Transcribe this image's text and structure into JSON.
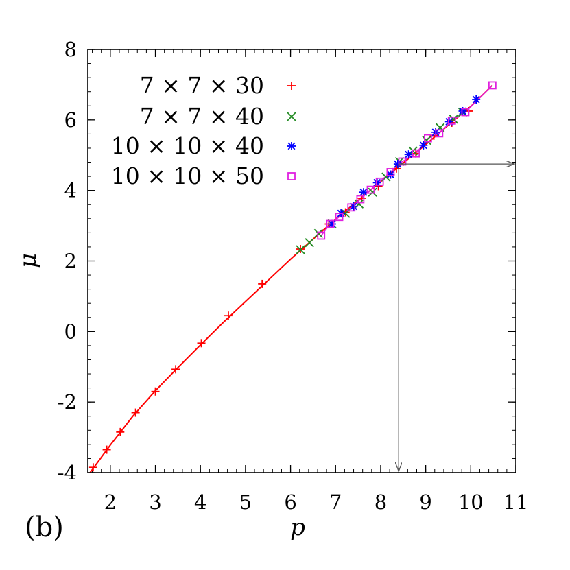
{
  "chart_data": {
    "type": "scatter",
    "panel_label": "(b)",
    "xlabel": "p",
    "ylabel": "μ",
    "xlim": [
      1.5,
      11
    ],
    "ylim": [
      -4,
      8
    ],
    "x_ticks": [
      2,
      3,
      4,
      5,
      6,
      7,
      8,
      9,
      10,
      11
    ],
    "x_tick_labels": [
      "2",
      "3",
      "4",
      "5",
      "6",
      "7",
      "8",
      "9",
      "10",
      "11"
    ],
    "y_ticks": [
      -4,
      -2,
      0,
      2,
      4,
      6,
      8
    ],
    "y_tick_labels": [
      "-4",
      "-2",
      "0",
      "2",
      "4",
      "6",
      "8"
    ],
    "legend_position": "top-left",
    "series": [
      {
        "name": "7 × 7 × 30",
        "color": "#ff0000",
        "marker": "plus",
        "points": [
          [
            1.62,
            -3.85
          ],
          [
            1.92,
            -3.35
          ],
          [
            2.22,
            -2.85
          ],
          [
            2.56,
            -2.3
          ],
          [
            3.0,
            -1.7
          ],
          [
            3.45,
            -1.07
          ],
          [
            4.02,
            -0.33
          ],
          [
            4.62,
            0.45
          ],
          [
            5.37,
            1.35
          ],
          [
            6.22,
            2.34
          ],
          [
            6.85,
            3.05
          ],
          [
            7.22,
            3.38
          ],
          [
            7.58,
            3.78
          ],
          [
            7.95,
            4.12
          ],
          [
            8.35,
            4.62
          ],
          [
            8.78,
            5.05
          ],
          [
            9.18,
            5.55
          ],
          [
            9.58,
            5.92
          ],
          [
            9.95,
            6.25
          ]
        ]
      },
      {
        "name": "7 × 7 × 40",
        "color": "#228b22",
        "marker": "cross",
        "points": [
          [
            6.22,
            2.32
          ],
          [
            6.42,
            2.52
          ],
          [
            6.62,
            2.78
          ],
          [
            6.92,
            3.05
          ],
          [
            7.22,
            3.35
          ],
          [
            7.52,
            3.62
          ],
          [
            7.82,
            3.95
          ],
          [
            8.12,
            4.38
          ],
          [
            8.42,
            4.82
          ],
          [
            8.72,
            5.12
          ],
          [
            9.02,
            5.42
          ],
          [
            9.32,
            5.78
          ],
          [
            9.62,
            6.02
          ],
          [
            9.82,
            6.22
          ]
        ]
      },
      {
        "name": "10 × 10 × 40",
        "color": "#0000ff",
        "marker": "star",
        "points": [
          [
            6.92,
            3.05
          ],
          [
            7.12,
            3.35
          ],
          [
            7.4,
            3.55
          ],
          [
            7.62,
            3.95
          ],
          [
            7.92,
            4.22
          ],
          [
            8.22,
            4.45
          ],
          [
            8.38,
            4.75
          ],
          [
            8.62,
            5.02
          ],
          [
            8.95,
            5.28
          ],
          [
            9.22,
            5.65
          ],
          [
            9.52,
            5.95
          ],
          [
            9.82,
            6.25
          ],
          [
            10.12,
            6.58
          ]
        ]
      },
      {
        "name": "10 × 10 × 50",
        "color": "#e020e0",
        "marker": "square",
        "points": [
          [
            6.68,
            2.72
          ],
          [
            6.88,
            3.05
          ],
          [
            7.08,
            3.25
          ],
          [
            7.35,
            3.52
          ],
          [
            7.55,
            3.75
          ],
          [
            7.78,
            4.02
          ],
          [
            7.98,
            4.25
          ],
          [
            8.22,
            4.52
          ],
          [
            8.48,
            4.82
          ],
          [
            8.78,
            5.05
          ],
          [
            9.05,
            5.48
          ],
          [
            9.3,
            5.62
          ],
          [
            9.58,
            5.98
          ],
          [
            9.88,
            6.22
          ],
          [
            10.48,
            6.98
          ]
        ]
      }
    ],
    "fit_curve": {
      "color": "#ff0000",
      "points": [
        [
          1.55,
          -4.0
        ],
        [
          2.0,
          -3.22
        ],
        [
          2.5,
          -2.4
        ],
        [
          3.0,
          -1.68
        ],
        [
          3.5,
          -1.02
        ],
        [
          4.0,
          -0.38
        ],
        [
          4.5,
          0.25
        ],
        [
          5.0,
          0.85
        ],
        [
          5.5,
          1.45
        ],
        [
          6.0,
          2.05
        ],
        [
          6.5,
          2.62
        ],
        [
          7.0,
          3.18
        ],
        [
          7.5,
          3.72
        ],
        [
          8.0,
          4.25
        ],
        [
          8.5,
          4.78
        ],
        [
          9.0,
          5.3
        ],
        [
          9.5,
          5.85
        ],
        [
          10.0,
          6.38
        ],
        [
          10.48,
          6.98
        ]
      ]
    },
    "annotation_arrows": {
      "color": "#555555",
      "corner": [
        8.4,
        4.75
      ],
      "to_right": [
        11.0,
        4.75
      ],
      "to_bottom": [
        8.4,
        -4.0
      ]
    }
  }
}
